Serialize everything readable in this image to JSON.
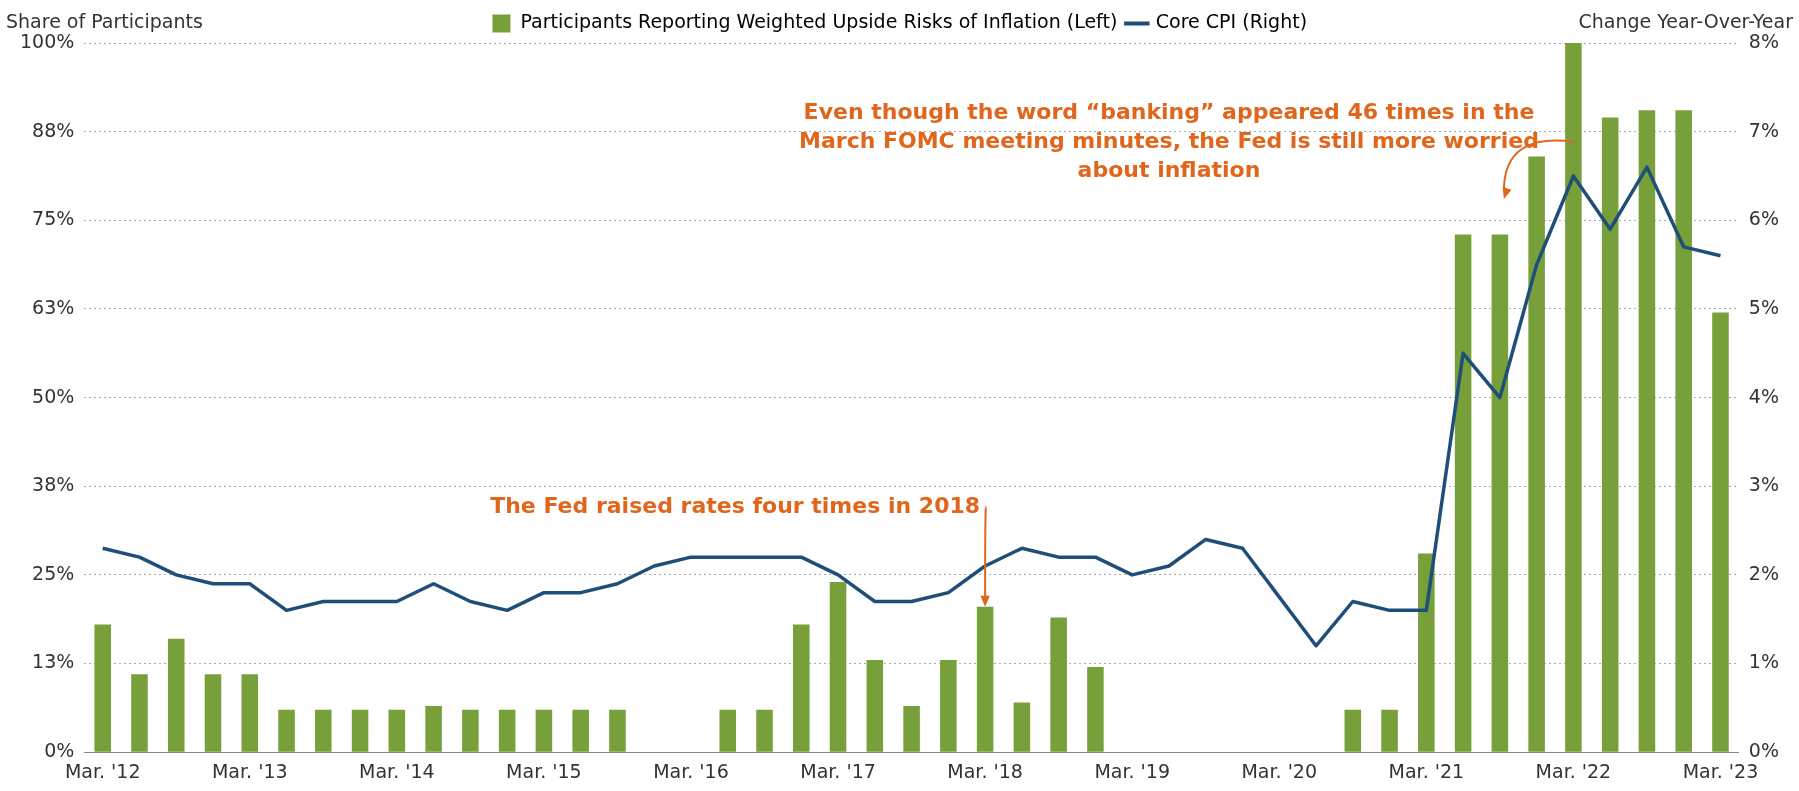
{
  "chart_data": {
    "type": "bar",
    "ylabel": "Share of Participants",
    "y2label": "Change Year-Over-Year",
    "categories": [
      "Mar. '12",
      null,
      null,
      null,
      "Mar. '13",
      null,
      null,
      null,
      "Mar. '14",
      null,
      null,
      null,
      "Mar. '15",
      null,
      null,
      null,
      "Mar. '16",
      null,
      null,
      null,
      "Mar. '17",
      null,
      null,
      null,
      "Mar. '18",
      null,
      null,
      null,
      "Mar. '19",
      null,
      null,
      null,
      "Mar. '20",
      null,
      null,
      null,
      "Mar. '21",
      null,
      null,
      null,
      "Mar. '22",
      null,
      null,
      null,
      "Mar. '23"
    ],
    "series": [
      {
        "name": "Participants Reporting Weighted Upside Risks of Inflation (Left)",
        "color": "#77a03a",
        "values": [
          18,
          11,
          16,
          11,
          11,
          6,
          6,
          6,
          6,
          6.5,
          6,
          6,
          6,
          6,
          6,
          0,
          0,
          6,
          6,
          18,
          24,
          13,
          6.5,
          13,
          20.5,
          7,
          19,
          12,
          0,
          0,
          0,
          0,
          null,
          0,
          6,
          6,
          28,
          73,
          73,
          84,
          100,
          89.5,
          90.5,
          90.5,
          62
        ]
      },
      {
        "name": "Core CPI (Right)",
        "type": "line",
        "axis": "y2",
        "color": "#1f4e79",
        "values": [
          2.3,
          2.2,
          2.0,
          1.9,
          1.9,
          1.6,
          1.7,
          1.7,
          1.7,
          1.9,
          1.7,
          1.6,
          1.8,
          1.8,
          1.9,
          2.1,
          2.2,
          2.2,
          2.2,
          2.2,
          2.0,
          1.7,
          1.7,
          1.8,
          2.1,
          2.3,
          2.2,
          2.2,
          2.0,
          2.1,
          2.4,
          2.3,
          null,
          1.2,
          1.7,
          1.6,
          1.6,
          4.5,
          4.0,
          5.5,
          6.5,
          5.9,
          6.6,
          5.7,
          5.6
        ]
      }
    ],
    "ylim": [
      0,
      100
    ],
    "yticks": [
      {
        "value": 0,
        "label": "0%"
      },
      {
        "value": 12.5,
        "label": "13%"
      },
      {
        "value": 25,
        "label": "25%"
      },
      {
        "value": 37.5,
        "label": "38%"
      },
      {
        "value": 50,
        "label": "50%"
      },
      {
        "value": 62.5,
        "label": "63%"
      },
      {
        "value": 75,
        "label": "75%"
      },
      {
        "value": 87.5,
        "label": "88%"
      },
      {
        "value": 100,
        "label": "100%"
      }
    ],
    "y2lim": [
      0,
      8
    ],
    "y2ticks": [
      {
        "value": 0,
        "label": "0%"
      },
      {
        "value": 1,
        "label": "1%"
      },
      {
        "value": 2,
        "label": "2%"
      },
      {
        "value": 3,
        "label": "3%"
      },
      {
        "value": 4,
        "label": "4%"
      },
      {
        "value": 5,
        "label": "5%"
      },
      {
        "value": 6,
        "label": "6%"
      },
      {
        "value": 7,
        "label": "7%"
      },
      {
        "value": 8,
        "label": "8%"
      }
    ],
    "annotations": [
      {
        "text": "The Fed raised rates four times in 2018",
        "x": "Mar. '18",
        "y": 20.5
      },
      "Even though the word “banking” appeared 46 times in the March FOMC meeting minutes, the Fed is still more worried about inflation"
    ],
    "grid": "y",
    "legend": "top",
    "marker": "none",
    "line_style": "solid"
  }
}
